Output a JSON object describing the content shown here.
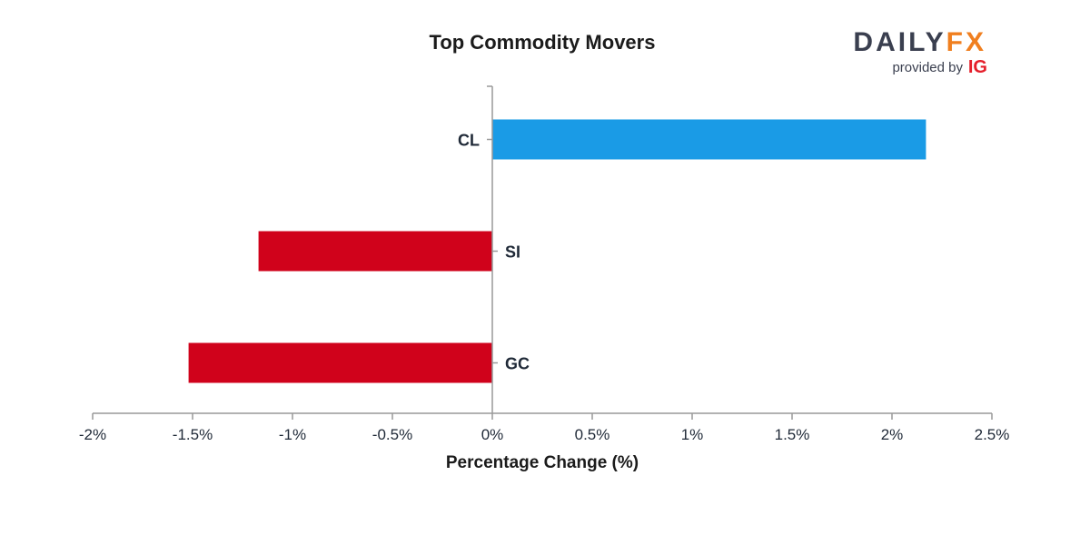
{
  "chart_data": {
    "type": "bar",
    "orientation": "horizontal",
    "title": "Top Commodity Movers",
    "xlabel": "Percentage Change (%)",
    "ylabel": "",
    "categories": [
      "CL",
      "SI",
      "GC"
    ],
    "values": [
      2.17,
      -1.17,
      -1.52
    ],
    "xlim": [
      -2,
      2.5
    ],
    "xticks": [
      -2,
      -1.5,
      -1,
      -0.5,
      0,
      0.5,
      1,
      1.5,
      2,
      2.5
    ],
    "xtick_labels": [
      "-2%",
      "-1.5%",
      "-1%",
      "-0.5%",
      "0%",
      "0.5%",
      "1%",
      "1.5%",
      "2%",
      "2.5%"
    ],
    "grid": false,
    "legend": "none",
    "colors": {
      "positive": "#1a9be6",
      "negative": "#d0021b",
      "axis": "#999999"
    }
  },
  "logo": {
    "brand_left": "DAILY",
    "brand_right": "FX",
    "provided_by": "provided by",
    "ig": "IG",
    "colors": {
      "dark": "#3a3f4f",
      "accent": "#f07f1f",
      "ig": "#e51e2a"
    }
  }
}
